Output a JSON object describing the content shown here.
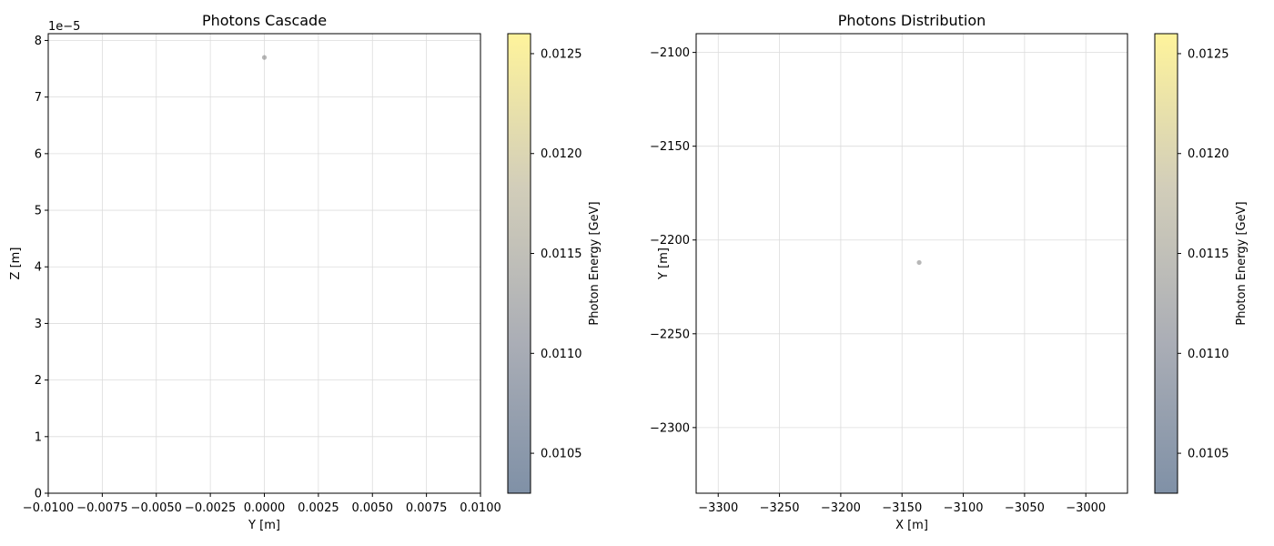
{
  "chart_data": [
    {
      "type": "scatter",
      "title": "Photons Cascade",
      "xlabel": "Y [m]",
      "ylabel": "Z [m]",
      "y_offset_text": "1e−5",
      "xlim": [
        -0.01,
        0.01
      ],
      "ylim": [
        0,
        8.12
      ],
      "xticks": [
        -0.01,
        -0.0075,
        -0.005,
        -0.0025,
        0.0,
        0.0025,
        0.005,
        0.0075,
        0.01
      ],
      "xtick_labels": [
        "−0.0100",
        "−0.0075",
        "−0.0050",
        "−0.0025",
        "0.0000",
        "0.0025",
        "0.0050",
        "0.0075",
        "0.0100"
      ],
      "yticks": [
        0,
        1,
        2,
        3,
        4,
        5,
        6,
        7,
        8
      ],
      "ytick_labels": [
        "0",
        "1",
        "2",
        "3",
        "4",
        "5",
        "6",
        "7",
        "8"
      ],
      "grid": true,
      "points": [
        {
          "x": 0.0,
          "y": 7.7,
          "energy": 0.0113
        }
      ],
      "colorbar": {
        "label": "Photon Energy [GeV]",
        "range": [
          0.0103,
          0.0126
        ],
        "ticks": [
          0.0105,
          0.011,
          0.0115,
          0.012,
          0.0125
        ],
        "tick_labels": [
          "0.0105",
          "0.0110",
          "0.0115",
          "0.0120",
          "0.0125"
        ],
        "colormap": [
          "#00224e",
          "#575d6d",
          "#a59c74",
          "#fee838"
        ],
        "alpha": 0.5
      }
    },
    {
      "type": "scatter",
      "title": "Photons Distribution",
      "xlabel": "X [m]",
      "ylabel": "Y [m]",
      "xlim": [
        -3318,
        -2966
      ],
      "ylim": [
        -2335,
        -2090
      ],
      "xticks": [
        -3300,
        -3250,
        -3200,
        -3150,
        -3100,
        -3050,
        -3000
      ],
      "xtick_labels": [
        "−3300",
        "−3250",
        "−3200",
        "−3150",
        "−3100",
        "−3050",
        "−3000"
      ],
      "yticks": [
        -2300,
        -2250,
        -2200,
        -2150,
        -2100
      ],
      "ytick_labels": [
        "−2300",
        "−2250",
        "−2200",
        "−2150",
        "−2100"
      ],
      "grid": true,
      "points": [
        {
          "x": -3136,
          "y": -2212,
          "energy": 0.0113
        }
      ],
      "colorbar": {
        "label": "Photon Energy [GeV]",
        "range": [
          0.0103,
          0.0126
        ],
        "ticks": [
          0.0105,
          0.011,
          0.0115,
          0.012,
          0.0125
        ],
        "tick_labels": [
          "0.0105",
          "0.0110",
          "0.0115",
          "0.0120",
          "0.0125"
        ],
        "colormap": [
          "#00224e",
          "#575d6d",
          "#a59c74",
          "#fee838"
        ],
        "alpha": 0.5
      }
    }
  ]
}
